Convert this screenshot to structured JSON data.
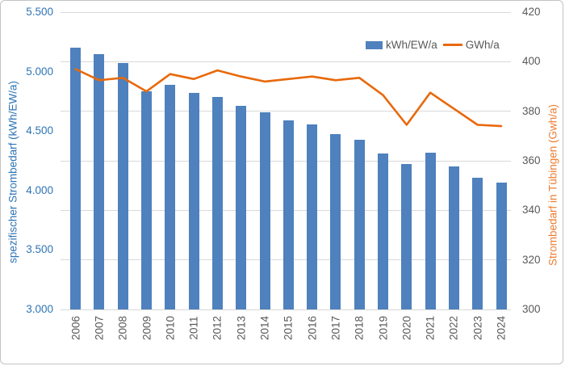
{
  "chart_data": {
    "type": "bar",
    "subtype": "combo-bar-line-dual-axis",
    "categories": [
      "2006",
      "2007",
      "2008",
      "2009",
      "2010",
      "2011",
      "2012",
      "2013",
      "2014",
      "2015",
      "2016",
      "2017",
      "2018",
      "2019",
      "2020",
      "2021",
      "2022",
      "2023",
      "2024"
    ],
    "series": [
      {
        "name": "kWh/EW/a",
        "render": "bar",
        "axis": "left",
        "values": [
          5200,
          5145,
          5075,
          4835,
          4890,
          4820,
          4790,
          4715,
          4660,
          4590,
          4555,
          4475,
          4430,
          4310,
          4220,
          4315,
          4205,
          4105,
          4065
        ]
      },
      {
        "name": "GWh/a",
        "render": "line",
        "axis": "right",
        "values": [
          397,
          392.5,
          393.5,
          388,
          395,
          393,
          396.5,
          394,
          392,
          393,
          394,
          392.5,
          393.5,
          386.5,
          374.5,
          387.5,
          381,
          374.5,
          374
        ]
      }
    ],
    "left_axis": {
      "title": "spezifischer Strombedarf (kWh/EW/a)",
      "min": 3000,
      "max": 5500,
      "ticks": [
        {
          "label": "5.500",
          "value": 5500
        },
        {
          "label": "5.000",
          "value": 5000
        },
        {
          "label": "4.500",
          "value": 4500
        },
        {
          "label": "4.000",
          "value": 4000
        },
        {
          "label": "3.500",
          "value": 3500
        },
        {
          "label": "3.000",
          "value": 3000
        }
      ]
    },
    "right_axis": {
      "title": "Strombedarf in Tübingen (Gwh/a)",
      "min": 300,
      "max": 420,
      "ticks": [
        {
          "label": "420",
          "value": 420
        },
        {
          "label": "400",
          "value": 400
        },
        {
          "label": "380",
          "value": 380
        },
        {
          "label": "360",
          "value": 360
        },
        {
          "label": "340",
          "value": 340
        },
        {
          "label": "320",
          "value": 320
        },
        {
          "label": "300",
          "value": 300
        }
      ]
    },
    "legend": {
      "position": "top-right",
      "items": [
        "kWh/EW/a",
        "GWh/a"
      ]
    },
    "grid": "horizontal gridlines at right-axis ticks (every 20 GWh)",
    "colors": {
      "bar": "#4e81bd",
      "line": "#e8690b",
      "left_axis_text": "#2e74b5",
      "right_axis_title": "#ed7d31",
      "axis_text": "#595959",
      "gridline": "#d9d9d9"
    }
  }
}
